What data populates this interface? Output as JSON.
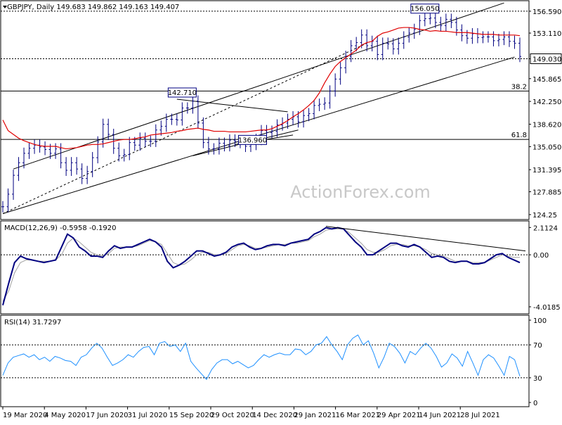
{
  "header": {
    "price_title": "GBPJPY, Daily  149.683 149.862 149.163 149.407",
    "macd_title": "MACD(12,26,9) -0.5958 -0.1920",
    "rsi_title": "RSI(14) 31.7297",
    "watermark": "ActionForex.com"
  },
  "colors": {
    "bars": "#000080",
    "ma": "#e00000",
    "macd_line": "#000080",
    "signal_line": "#a0a0a0",
    "rsi_line": "#1e90ff",
    "trendline": "#000000"
  },
  "chart_data": [
    {
      "type": "line",
      "subtype": "ohlc-bars",
      "title": "GBPJPY, Daily  149.683 149.862 149.163 149.407",
      "last_ohlc": {
        "open": 149.683,
        "high": 149.862,
        "low": 149.163,
        "close": 149.407
      },
      "x_tick_labels": [
        "19 Mar 2020",
        "4 May 2020",
        "17 Jun 2020",
        "31 Jul 2020",
        "15 Sep 2020",
        "29 Oct 2020",
        "14 Dec 2020",
        "29 Jan 2021",
        "16 Mar 2021",
        "29 Apr 2021",
        "14 Jun 2021",
        "28 Jul 2021"
      ],
      "y_ticks": [
        124.25,
        127.885,
        131.395,
        135.05,
        138.62,
        142.25,
        145.865,
        149.03,
        153.11,
        156.59
      ],
      "y_tick_labels": [
        "124.25",
        "127.885",
        "131.395",
        "135.050",
        "138.620",
        "142.250",
        "145.865",
        "149.030",
        "153.110",
        "156.590"
      ],
      "ylim": [
        123.8,
        157.7
      ],
      "current_price_label": "149.030",
      "top_price_label": "156.590",
      "annotations": {
        "swing_labels": [
          {
            "label": "142.710",
            "value": 142.71
          },
          {
            "label": "136.960",
            "value": 136.96
          },
          {
            "label": "156.050",
            "value": 156.05
          }
        ],
        "fib_levels": [
          {
            "label": "38.2",
            "value": 143.9
          },
          {
            "label": "61.8",
            "value": 136.2
          }
        ],
        "horizontal_levels": [
          149.03
        ]
      },
      "series": [
        {
          "name": "Price (approx daily closes)",
          "style": "ohlc-bars",
          "values": [
            125.5,
            127.5,
            130.5,
            132.5,
            134,
            134.8,
            135.3,
            135,
            134.6,
            134,
            134.7,
            132.5,
            131.3,
            132.5,
            131.5,
            130,
            131.1,
            133.3,
            135.8,
            138.6,
            137,
            134.8,
            133.6,
            133.8,
            135.7,
            135.3,
            136.4,
            135.9,
            135.9,
            137.7,
            138.3,
            139.4,
            139.4,
            139.3,
            141.2,
            141.2,
            142.3,
            138.8,
            135.7,
            134.7,
            134.7,
            135.6,
            135.2,
            136.1,
            135.9,
            135.7,
            135.1,
            135.4,
            136.2,
            137.6,
            137.3,
            137.5,
            138.5,
            138.8,
            139.4,
            139.8,
            139,
            140,
            140.3,
            141.6,
            141.8,
            142,
            143.9,
            145.8,
            147.6,
            149.4,
            151.1,
            151.6,
            152.8,
            151.1,
            151.8,
            149.7,
            151.5,
            151.4,
            150.6,
            151.5,
            152.5,
            153.1,
            153.7,
            155.1,
            155.4,
            155.5,
            154.8,
            154.3,
            155.3,
            154.8,
            153.6,
            152.7,
            152.3,
            153,
            152.4,
            152.5,
            152.5,
            151.9,
            152.1,
            152.5,
            151.8,
            151.5,
            149.4
          ]
        },
        {
          "name": "Moving average (red)",
          "style": "line",
          "values": [
            139.3,
            137.6,
            137,
            136.4,
            136,
            135.7,
            135.4,
            135.2,
            135.1,
            135.1,
            135.1,
            134.9,
            134.7,
            134.8,
            134.9,
            135.1,
            135.3,
            135.4,
            135.4,
            135.5,
            135.7,
            135.9,
            136.1,
            136.2,
            136.2,
            136.3,
            136.5,
            136.6,
            136.9,
            137,
            137.1,
            137.2,
            137.3,
            137.5,
            137.6,
            137.8,
            137.9,
            138,
            137.8,
            137.7,
            137.5,
            137.5,
            137.5,
            137.4,
            137.4,
            137.4,
            137.4,
            137.5,
            137.6,
            137.7,
            137.7,
            137.9,
            138.3,
            138.7,
            139.2,
            139.8,
            140.3,
            140.9,
            141.6,
            142.4,
            143.6,
            145.2,
            146.6,
            147.8,
            148.6,
            149.2,
            149.8,
            150.4,
            151.2,
            151.6,
            151.8,
            152.6,
            153.1,
            153.3,
            153.6,
            153.9,
            154,
            154,
            153.9,
            153.7,
            153.6,
            153.4,
            153.5,
            153.4,
            153.4,
            153.3,
            153.2,
            153.2,
            153.2,
            153.1,
            153,
            152.9,
            152.9,
            152.9,
            152.8,
            152.8,
            152.8,
            152.8,
            152.7
          ]
        }
      ]
    },
    {
      "type": "line",
      "title": "MACD(12,26,9) -0.5958 -0.1920",
      "y_ticks": [
        2.1124,
        0,
        -4.0185
      ],
      "y_tick_labels": [
        "2.1124",
        "0.00",
        "-4.0185"
      ],
      "ylim": [
        -4.4,
        2.4
      ],
      "series": [
        {
          "name": "MACD",
          "values": [
            -3.9,
            -2.2,
            -0.6,
            -0.1,
            -0.3,
            -0.4,
            -0.5,
            -0.6,
            -0.5,
            -0.4,
            0.6,
            1.6,
            1.3,
            0.6,
            0.3,
            -0.1,
            -0.1,
            -0.2,
            0.3,
            0.7,
            0.5,
            0.6,
            0.6,
            0.8,
            1.0,
            1.2,
            1.0,
            0.6,
            -0.5,
            -1.0,
            -0.8,
            -0.5,
            -0.1,
            0.3,
            0.3,
            0.1,
            -0.1,
            0.0,
            0.2,
            0.6,
            0.8,
            0.9,
            0.6,
            0.4,
            0.5,
            0.7,
            0.8,
            0.8,
            0.7,
            0.9,
            1.0,
            1.1,
            1.2,
            1.6,
            1.8,
            2.1,
            2.0,
            2.1,
            2.0,
            1.5,
            1.0,
            0.6,
            0.0,
            0.0,
            0.3,
            0.6,
            0.9,
            0.9,
            0.7,
            0.6,
            0.8,
            0.6,
            0.2,
            -0.2,
            -0.1,
            -0.2,
            -0.5,
            -0.6,
            -0.5,
            -0.5,
            -0.7,
            -0.7,
            -0.6,
            -0.3,
            0.0,
            0.1,
            -0.2,
            -0.4,
            -0.6
          ]
        },
        {
          "name": "Signal",
          "values": [
            -3.6,
            -2.8,
            -1.4,
            -0.6,
            -0.4,
            -0.4,
            -0.5,
            -0.5,
            -0.5,
            -0.4,
            0.0,
            0.9,
            1.3,
            1.0,
            0.6,
            0.2,
            0.0,
            -0.1,
            0.1,
            0.5,
            0.6,
            0.6,
            0.6,
            0.7,
            0.9,
            1.1,
            1.0,
            0.8,
            0.1,
            -0.6,
            -0.8,
            -0.7,
            -0.4,
            0.0,
            0.2,
            0.2,
            0.0,
            0.0,
            0.1,
            0.4,
            0.7,
            0.8,
            0.7,
            0.5,
            0.5,
            0.6,
            0.7,
            0.8,
            0.8,
            0.9,
            0.9,
            1.0,
            1.1,
            1.4,
            1.6,
            1.9,
            2.0,
            2.0,
            2.0,
            1.7,
            1.3,
            0.9,
            0.4,
            0.2,
            0.2,
            0.4,
            0.7,
            0.8,
            0.8,
            0.7,
            0.7,
            0.6,
            0.4,
            0.1,
            0.0,
            -0.1,
            -0.3,
            -0.5,
            -0.5,
            -0.5,
            -0.6,
            -0.6,
            -0.6,
            -0.4,
            -0.2,
            0.0,
            -0.1,
            -0.2,
            -0.2
          ]
        }
      ]
    },
    {
      "type": "line",
      "title": "RSI(14) 31.7297",
      "y_ticks": [
        100,
        70,
        30,
        0
      ],
      "y_tick_labels": [
        "100",
        "70",
        "30",
        "0"
      ],
      "ylim": [
        0,
        100
      ],
      "series": [
        {
          "name": "RSI(14)",
          "values": [
            33,
            48,
            55,
            57,
            59,
            55,
            58,
            52,
            55,
            50,
            56,
            54,
            51,
            50,
            45,
            55,
            58,
            66,
            72,
            66,
            55,
            45,
            48,
            52,
            58,
            55,
            62,
            67,
            68,
            58,
            72,
            74,
            68,
            70,
            62,
            72,
            50,
            42,
            35,
            28,
            40,
            48,
            52,
            52,
            47,
            50,
            46,
            42,
            45,
            52,
            58,
            55,
            58,
            60,
            58,
            58,
            65,
            64,
            58,
            62,
            70,
            72,
            80,
            70,
            62,
            52,
            70,
            78,
            82,
            70,
            75,
            60,
            42,
            55,
            72,
            68,
            60,
            48,
            62,
            58,
            66,
            72,
            66,
            56,
            43,
            48,
            59,
            54,
            44,
            62,
            48,
            33,
            52,
            58,
            54,
            44,
            33,
            56,
            52,
            32
          ]
        }
      ]
    }
  ]
}
